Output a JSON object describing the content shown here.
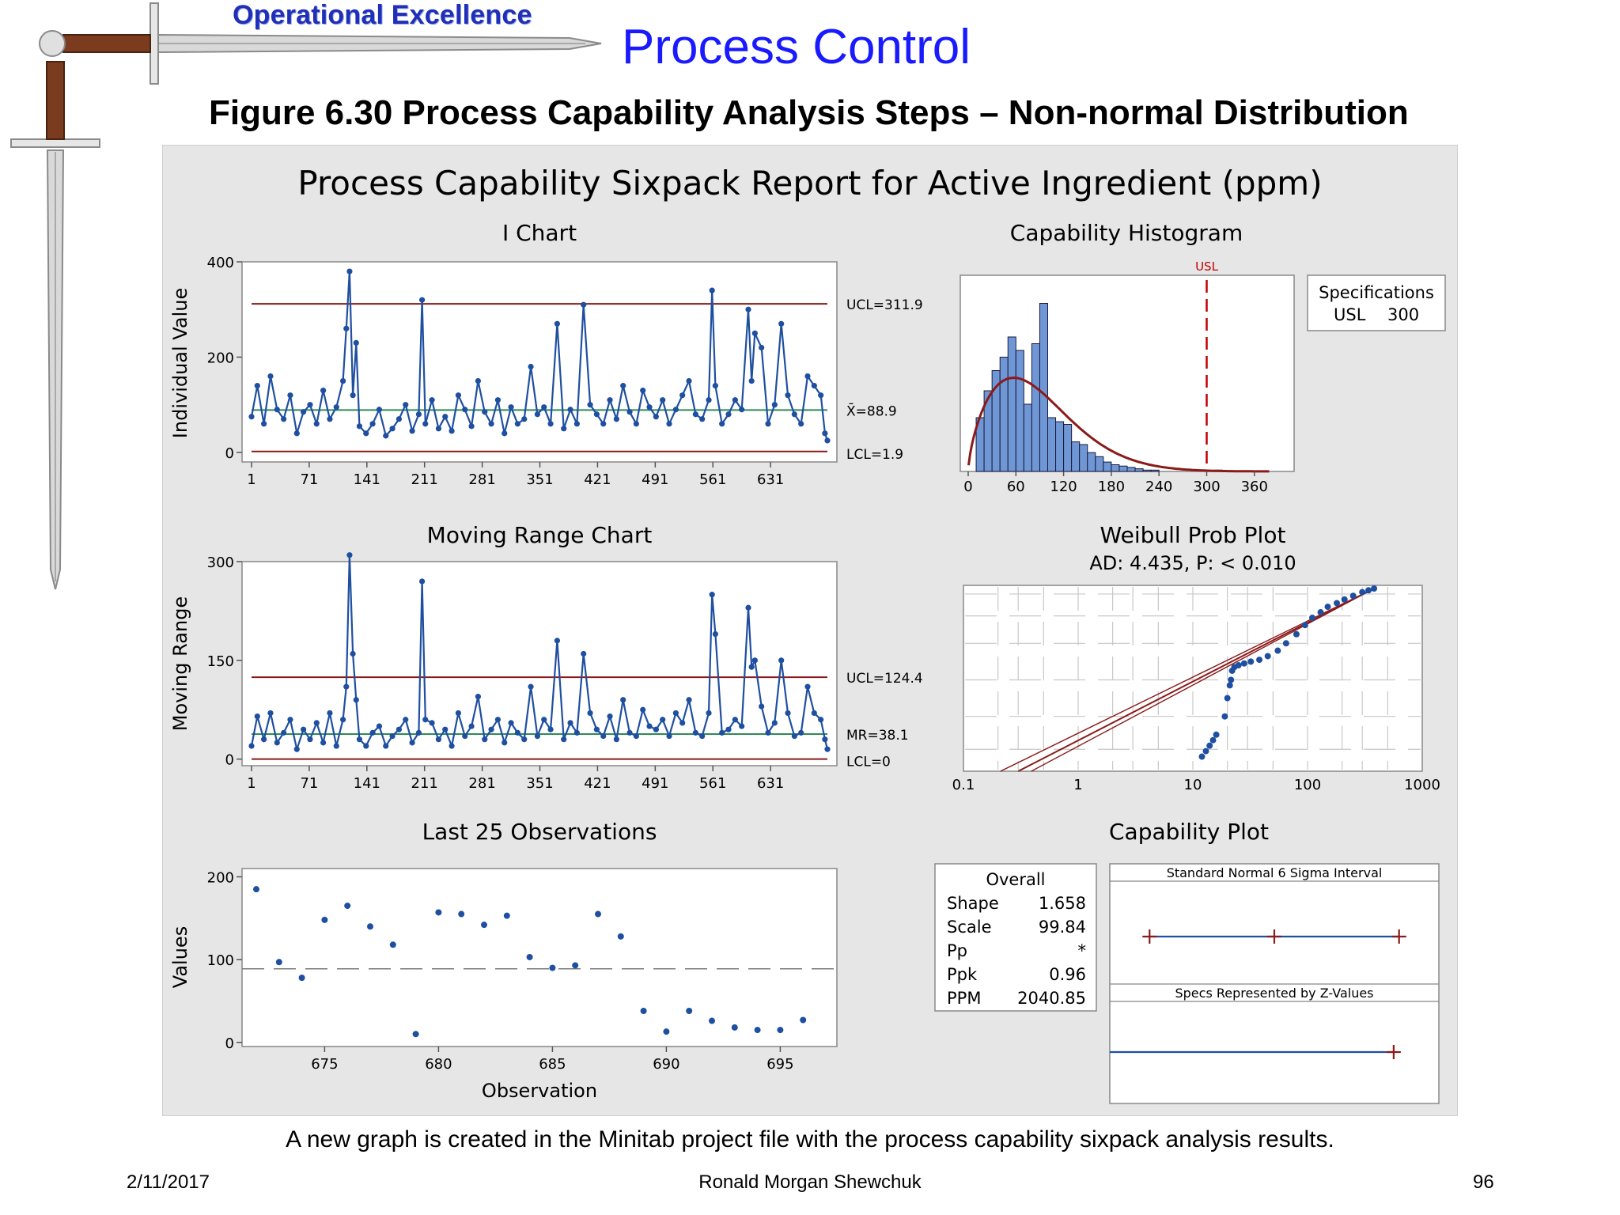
{
  "header": {
    "brand": "Operational Excellence",
    "title": "Process Control",
    "subtitle": "Figure 6.30  Process Capability Analysis Steps – Non-normal Distribution"
  },
  "report_title": "Process Capability Sixpack Report for Active Ingredient (ppm)",
  "footer": {
    "caption": "A new graph is created in the Minitab project file with the process capability sixpack analysis results.",
    "date": "2/11/2017",
    "author": "Ronald Morgan Shewchuk",
    "page": "96"
  },
  "colors": {
    "series": "#1f4fa0",
    "limit": "#8b1a1a",
    "center": "#2e8b57",
    "bar": "#6f97d6",
    "usl": "#c00000"
  },
  "chart_data": [
    {
      "type": "line",
      "title": "I Chart",
      "ylabel": "Individual Value",
      "xlim": [
        1,
        700
      ],
      "ylim": [
        -20,
        400
      ],
      "xticks": [
        1,
        71,
        141,
        211,
        281,
        351,
        421,
        491,
        561,
        631
      ],
      "yticks": [
        0,
        200,
        400
      ],
      "limits": [
        {
          "label": "UCL=311.9",
          "value": 311.9
        },
        {
          "label": "X̄=88.9",
          "value": 88.9
        },
        {
          "label": "LCL=1.9",
          "value": 1.9
        }
      ],
      "x": [
        1,
        8,
        16,
        24,
        32,
        40,
        48,
        56,
        64,
        72,
        80,
        88,
        96,
        104,
        112,
        116,
        120,
        124,
        128,
        132,
        140,
        148,
        156,
        164,
        172,
        180,
        188,
        196,
        204,
        208,
        212,
        220,
        228,
        236,
        244,
        252,
        260,
        268,
        276,
        284,
        292,
        300,
        308,
        316,
        324,
        332,
        340,
        348,
        356,
        364,
        372,
        380,
        388,
        396,
        404,
        412,
        420,
        428,
        436,
        444,
        452,
        460,
        468,
        476,
        484,
        492,
        500,
        508,
        516,
        524,
        532,
        540,
        548,
        556,
        560,
        564,
        572,
        580,
        588,
        596,
        604,
        608,
        612,
        620,
        628,
        636,
        644,
        652,
        660,
        668,
        676,
        684,
        692,
        697,
        700
      ],
      "y": [
        75,
        140,
        60,
        160,
        90,
        70,
        120,
        40,
        85,
        100,
        60,
        130,
        70,
        95,
        150,
        260,
        380,
        120,
        230,
        55,
        40,
        60,
        90,
        35,
        50,
        70,
        100,
        45,
        80,
        320,
        60,
        110,
        50,
        75,
        45,
        120,
        90,
        55,
        150,
        85,
        60,
        110,
        40,
        95,
        60,
        70,
        180,
        80,
        95,
        60,
        270,
        50,
        90,
        60,
        310,
        100,
        80,
        60,
        110,
        70,
        140,
        85,
        60,
        130,
        95,
        75,
        110,
        60,
        90,
        120,
        150,
        80,
        70,
        110,
        340,
        140,
        60,
        80,
        110,
        90,
        300,
        150,
        250,
        220,
        60,
        100,
        270,
        120,
        80,
        60,
        160,
        140,
        120,
        40,
        25
      ]
    },
    {
      "type": "bar",
      "title": "Capability Histogram",
      "bin_edges": [
        0,
        10,
        20,
        30,
        40,
        50,
        60,
        70,
        80,
        90,
        100,
        110,
        120,
        130,
        140,
        150,
        160,
        170,
        180,
        190,
        200,
        210,
        220,
        230,
        240,
        250,
        260,
        270,
        280,
        290,
        300,
        310,
        320,
        330,
        340,
        350,
        360,
        370,
        380
      ],
      "counts": [
        0,
        40,
        60,
        75,
        85,
        100,
        90,
        50,
        95,
        125,
        40,
        37,
        35,
        22,
        20,
        14,
        11,
        7,
        5,
        4,
        3,
        2,
        1,
        1,
        0,
        0,
        0,
        0,
        0,
        0,
        0,
        1,
        0,
        0,
        0,
        0,
        0,
        0
      ],
      "fit_curve": {
        "distribution": "Weibull",
        "shape": 1.658,
        "scale": 99.84
      },
      "xticks": [
        0,
        60,
        120,
        180,
        240,
        300,
        360
      ],
      "xlim": [
        0,
        400
      ],
      "usl": {
        "label": "USL",
        "value": 300
      },
      "specs_box": {
        "title": "Specifications",
        "label": "USL",
        "value": "300"
      }
    },
    {
      "type": "line",
      "title": "Moving Range Chart",
      "ylabel": "Moving Range",
      "xlim": [
        1,
        700
      ],
      "ylim": [
        -10,
        300
      ],
      "xticks": [
        1,
        71,
        141,
        211,
        281,
        351,
        421,
        491,
        561,
        631
      ],
      "yticks": [
        0,
        150,
        300
      ],
      "limits": [
        {
          "label": "UCL=124.4",
          "value": 124.4
        },
        {
          "label": "MR=38.1",
          "value": 38.1
        },
        {
          "label": "LCL=0",
          "value": 0
        }
      ],
      "x": [
        1,
        8,
        16,
        24,
        32,
        40,
        48,
        56,
        64,
        72,
        80,
        88,
        96,
        104,
        112,
        116,
        120,
        124,
        128,
        132,
        140,
        148,
        156,
        164,
        172,
        180,
        188,
        196,
        204,
        208,
        212,
        220,
        228,
        236,
        244,
        252,
        260,
        268,
        276,
        284,
        292,
        300,
        308,
        316,
        324,
        332,
        340,
        348,
        356,
        364,
        372,
        380,
        388,
        396,
        404,
        412,
        420,
        428,
        436,
        444,
        452,
        460,
        468,
        476,
        484,
        492,
        500,
        508,
        516,
        524,
        532,
        540,
        548,
        556,
        560,
        564,
        572,
        580,
        588,
        596,
        604,
        608,
        612,
        620,
        628,
        636,
        644,
        652,
        660,
        668,
        676,
        684,
        692,
        697,
        700
      ],
      "y": [
        20,
        65,
        30,
        70,
        25,
        40,
        60,
        15,
        45,
        30,
        55,
        25,
        70,
        20,
        60,
        110,
        310,
        160,
        90,
        30,
        20,
        40,
        50,
        20,
        35,
        45,
        60,
        25,
        40,
        270,
        60,
        55,
        30,
        45,
        20,
        70,
        35,
        50,
        95,
        30,
        45,
        60,
        25,
        55,
        40,
        30,
        110,
        35,
        60,
        45,
        180,
        30,
        55,
        40,
        160,
        70,
        45,
        35,
        65,
        30,
        90,
        40,
        35,
        75,
        50,
        45,
        60,
        35,
        70,
        55,
        90,
        40,
        35,
        70,
        250,
        190,
        40,
        45,
        60,
        50,
        230,
        140,
        150,
        80,
        40,
        55,
        150,
        70,
        35,
        40,
        110,
        70,
        60,
        30,
        15
      ]
    },
    {
      "type": "scatter",
      "title": "Weibull Prob Plot",
      "subtitle": "AD: 4.435, P: < 0.010",
      "xscale": "log",
      "xlim": [
        0.1,
        1000
      ],
      "xticks": [
        0.1,
        1,
        10,
        100,
        1000
      ],
      "x": [
        12,
        13,
        14,
        15,
        16,
        19,
        20,
        21,
        21.5,
        22,
        23,
        25,
        28,
        32,
        38,
        45,
        55,
        65,
        80,
        95,
        110,
        130,
        150,
        180,
        210,
        250,
        300,
        340,
        380
      ],
      "y": [
        0.08,
        0.11,
        0.14,
        0.17,
        0.2,
        0.3,
        0.4,
        0.47,
        0.5,
        0.55,
        0.57,
        0.58,
        0.59,
        0.6,
        0.61,
        0.63,
        0.66,
        0.7,
        0.75,
        0.8,
        0.84,
        0.87,
        0.9,
        0.92,
        0.94,
        0.96,
        0.98,
        0.99,
        1.0
      ]
    },
    {
      "type": "scatter",
      "title": "Last 25 Observations",
      "xlabel": "Observation",
      "ylabel": "Values",
      "xlim": [
        672,
        697
      ],
      "ylim": [
        -5,
        210
      ],
      "xticks": [
        675,
        680,
        685,
        690,
        695
      ],
      "yticks": [
        0,
        100,
        200
      ],
      "mean_line": 88.9,
      "x": [
        672,
        673,
        674,
        675,
        676,
        677,
        678,
        679,
        680,
        681,
        682,
        683,
        684,
        685,
        686,
        687,
        688,
        689,
        690,
        691,
        692,
        693,
        694,
        695,
        696
      ],
      "y": [
        185,
        97,
        78,
        148,
        165,
        140,
        118,
        10,
        157,
        155,
        142,
        153,
        103,
        90,
        93,
        155,
        128,
        38,
        13,
        38,
        26,
        18,
        15,
        15,
        27
      ]
    },
    {
      "type": "table",
      "title": "Capability Plot",
      "overall": {
        "title": "Overall",
        "rows": [
          [
            "Shape",
            "1.658"
          ],
          [
            "Scale",
            "99.84"
          ],
          [
            "Pp",
            "*"
          ],
          [
            "Ppk",
            "0.96"
          ],
          [
            "PPM",
            "2040.85"
          ]
        ]
      },
      "intervals": [
        {
          "label": "Standard Normal 6 Sigma Interval",
          "marks": [
            -3,
            0,
            3
          ]
        },
        {
          "label": "Specs Represented by Z-Values",
          "marks": [
            2.87
          ]
        }
      ]
    }
  ]
}
